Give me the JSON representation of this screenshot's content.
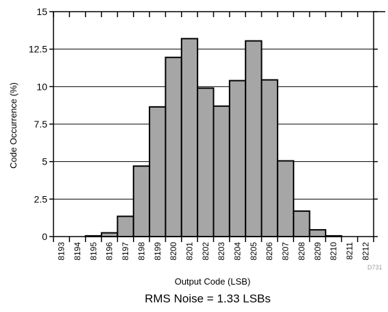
{
  "chart_data": {
    "type": "bar",
    "xlabel": "Output Code (LSB)",
    "ylabel": "Code Occurrence (%)",
    "caption": "RMS Noise = 1.33 LSBs",
    "figure_id": "D731",
    "ylim": [
      0,
      15
    ],
    "yticks": [
      "0",
      "2.5",
      "5",
      "7.5",
      "10",
      "12.5",
      "15"
    ],
    "grid": true,
    "categories": [
      "8193",
      "8194",
      "8195",
      "8196",
      "8197",
      "8198",
      "8199",
      "8200",
      "8201",
      "8202",
      "8203",
      "8204",
      "8205",
      "8206",
      "8207",
      "8208",
      "8209",
      "8210",
      "8211",
      "8212"
    ],
    "values": [
      0,
      0,
      0.05,
      0.25,
      1.35,
      4.7,
      8.65,
      11.95,
      13.2,
      9.9,
      8.7,
      10.4,
      13.05,
      10.45,
      5.05,
      1.7,
      0.45,
      0.05,
      0,
      0
    ],
    "colors": {
      "bar": "#a6a6a6",
      "edge": "#000000",
      "grid": "#000000"
    }
  }
}
